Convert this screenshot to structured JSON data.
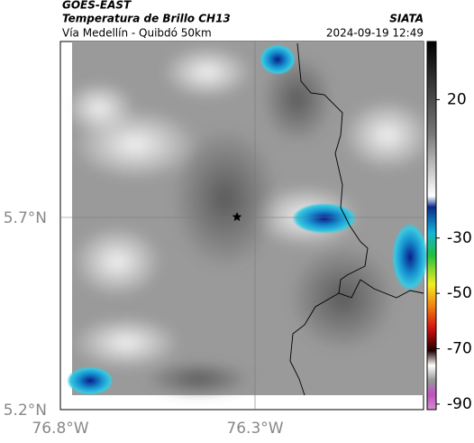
{
  "header": {
    "title": "GOES-EAST",
    "subtitle": "Temperatura de Brillo CH13",
    "route": "Vía Medellín - Quibdó 50km",
    "source": "SIATA",
    "datetime": "2024-09-19 12:49"
  },
  "map": {
    "lat_labels": [
      "5.7°N",
      "5.2°N"
    ],
    "lon_labels": [
      "76.8°W",
      "76.3°W"
    ]
  },
  "colorbar": {
    "range": [
      -92,
      41
    ],
    "ticks": [
      20,
      -30,
      -50,
      -70,
      -90
    ]
  }
}
